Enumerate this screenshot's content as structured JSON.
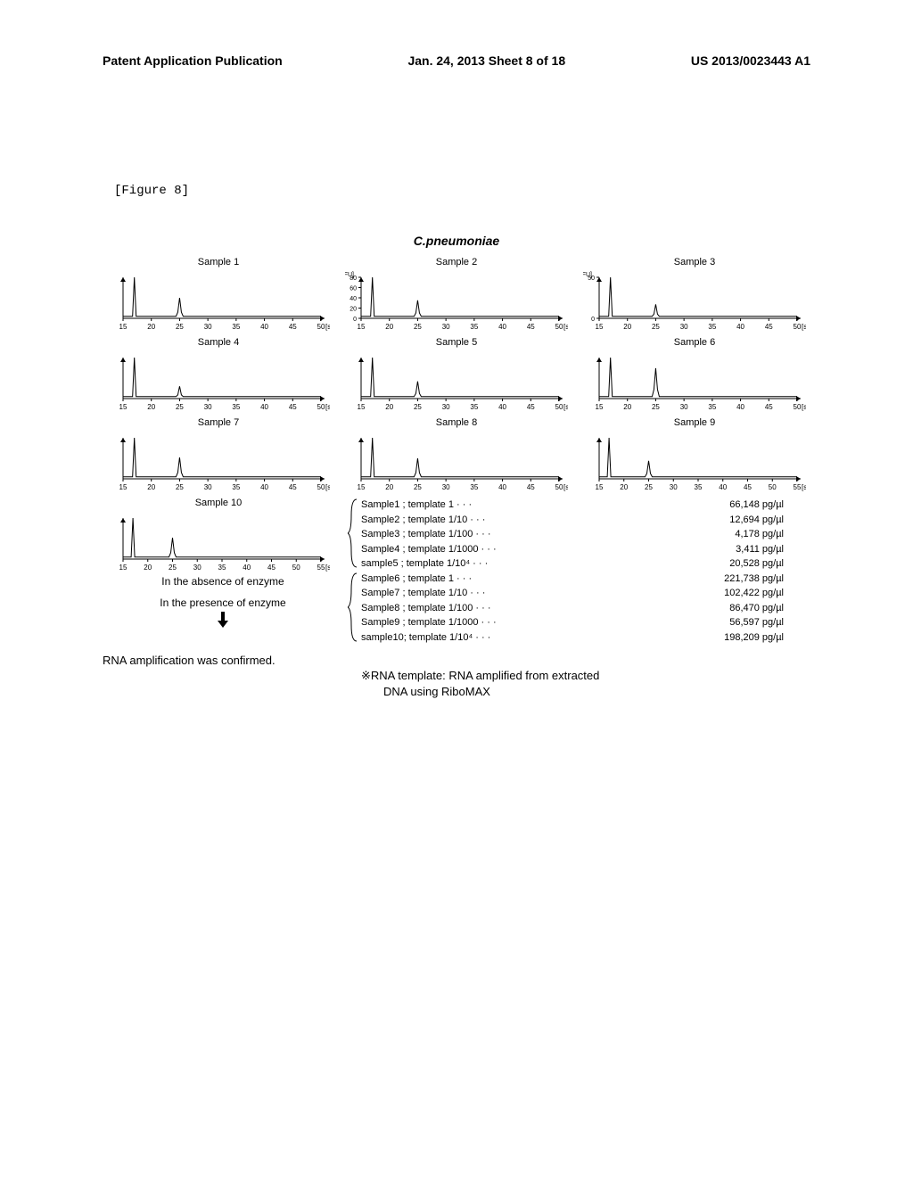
{
  "header": {
    "left": "Patent Application Publication",
    "center": "Jan. 24, 2013  Sheet 8 of 18",
    "right": "US 2013/0023443 A1"
  },
  "figure_label": "[Figure 8]",
  "chart_title": "C.pneumoniae",
  "charts": [
    {
      "label": "Sample 1",
      "xticks": [
        15,
        20,
        25,
        30,
        35,
        40,
        45,
        50
      ],
      "peak_x": 25,
      "peak_h": 0.5,
      "ylabel": null
    },
    {
      "label": "Sample 2",
      "xticks": [
        15,
        20,
        25,
        30,
        35,
        40,
        45,
        50
      ],
      "peak_x": 25,
      "peak_h": 0.44,
      "ylabel": "FU",
      "yticks": [
        0,
        20,
        40,
        60,
        80
      ]
    },
    {
      "label": "Sample 3",
      "xticks": [
        15,
        20,
        25,
        30,
        35,
        40,
        45,
        50
      ],
      "peak_x": 25,
      "peak_h": 0.34,
      "ylabel": "FU",
      "yticks": [
        0,
        50
      ]
    },
    {
      "label": "Sample 4",
      "xticks": [
        15,
        20,
        25,
        30,
        35,
        40,
        45,
        50
      ],
      "peak_x": 25,
      "peak_h": 0.3,
      "ylabel": null
    },
    {
      "label": "Sample 5",
      "xticks": [
        15,
        20,
        25,
        30,
        35,
        40,
        45,
        50
      ],
      "peak_x": 25,
      "peak_h": 0.42,
      "ylabel": null
    },
    {
      "label": "Sample 6",
      "xticks": [
        15,
        20,
        25,
        30,
        35,
        40,
        45,
        50
      ],
      "peak_x": 25,
      "peak_h": 0.74,
      "ylabel": null
    },
    {
      "label": "Sample 7",
      "xticks": [
        15,
        20,
        25,
        30,
        35,
        40,
        45,
        50
      ],
      "peak_x": 25,
      "peak_h": 0.52,
      "ylabel": null
    },
    {
      "label": "Sample 8",
      "xticks": [
        15,
        20,
        25,
        30,
        35,
        40,
        45,
        50
      ],
      "peak_x": 25,
      "peak_h": 0.5,
      "ylabel": null
    },
    {
      "label": "Sample 9",
      "xticks": [
        15,
        20,
        25,
        30,
        35,
        40,
        45,
        50,
        55
      ],
      "peak_x": 25,
      "peak_h": 0.44,
      "ylabel": null
    },
    {
      "label": "Sample 10",
      "xticks": [
        15,
        20,
        25,
        30,
        35,
        40,
        45,
        50,
        55
      ],
      "peak_x": 25,
      "peak_h": 0.52,
      "ylabel": null
    }
  ],
  "chart_style": {
    "line_color": "#000000",
    "axis_color": "#000000",
    "background": "#ffffff",
    "x_unit": "[s]",
    "marker_peak_x": 17
  },
  "absence_label": "In the absence of enzyme",
  "presence_label": "In the presence of enzyme",
  "legend_absence": [
    {
      "sample": "Sample1 ; template 1 · · ·",
      "value": "66,148 pg/µl"
    },
    {
      "sample": "Sample2 ; template 1/10 · · ·",
      "value": "12,694 pg/µl"
    },
    {
      "sample": "Sample3 ; template 1/100 · · ·",
      "value": "4,178 pg/µl"
    },
    {
      "sample": "Sample4 ; template 1/1000 · · ·",
      "value": "3,411 pg/µl"
    },
    {
      "sample": "sample5 ; template 1/10⁴ · · ·",
      "value": "20,528 pg/µl"
    }
  ],
  "legend_presence": [
    {
      "sample": "Sample6 ; template 1    · · ·",
      "value": "221,738 pg/µl"
    },
    {
      "sample": "Sample7 ; template 1/10  · · ·",
      "value": "102,422 pg/µl"
    },
    {
      "sample": "Sample8 ; template 1/100  · · ·",
      "value": "86,470 pg/µl"
    },
    {
      "sample": "Sample9 ; template 1/1000 · · ·",
      "value": "56,597 pg/µl"
    },
    {
      "sample": "sample10; template 1/10⁴ · · ·",
      "value": "198,209 pg/µl"
    }
  ],
  "confirm_text": "RNA amplification was confirmed.",
  "footnote": "※RNA template: RNA amplified from extracted",
  "footnote_cont": "DNA using RiboMAX"
}
